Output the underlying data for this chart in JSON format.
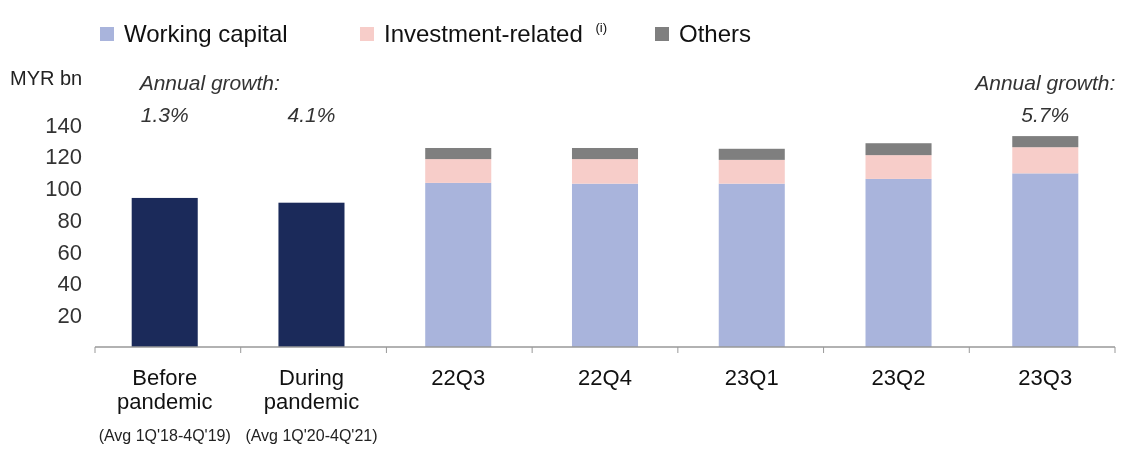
{
  "chart_data": {
    "type": "bar",
    "stacked": true,
    "ylabel": "MYR bn",
    "categories": [
      "Before pandemic (Avg 1Q'18-4Q'19)",
      "During pandemic (Avg 1Q'20-4Q'21)",
      "22Q3",
      "22Q4",
      "23Q1",
      "23Q2",
      "23Q3"
    ],
    "series": [
      {
        "color": "#1b2a5a",
        "values": [
          94,
          91,
          null,
          null,
          null,
          null,
          null
        ]
      },
      {
        "name": "Working capital",
        "color": "#a9b4dc",
        "values": [
          null,
          null,
          103.5,
          103,
          103,
          106,
          109.5
        ]
      },
      {
        "name": "Investment-related $^{(i)}$",
        "color": "#f7cdc9",
        "values": [
          null,
          null,
          15,
          15.5,
          15,
          15,
          16.5
        ]
      },
      {
        "name": "Others",
        "color": "#7f7f7f",
        "values": [
          null,
          null,
          7,
          7,
          7,
          7.5,
          7
        ]
      }
    ],
    "ylim": [
      0,
      140
    ],
    "yticks": [
      20,
      40,
      60,
      80,
      100,
      120,
      140
    ],
    "grid": false,
    "legend": "top",
    "annotations": [
      "Annual growth:",
      "1.3%",
      "4.1%",
      "Annual growth:",
      "5.7%"
    ]
  }
}
